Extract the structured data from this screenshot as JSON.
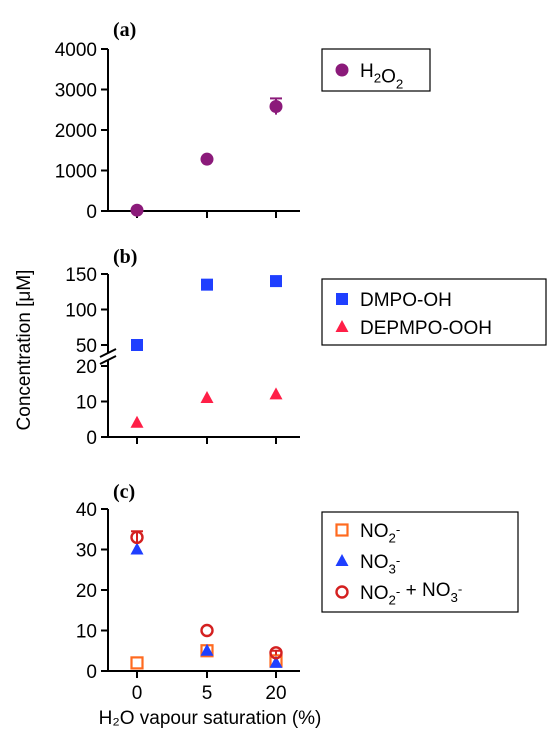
{
  "figure": {
    "shared_ylabel": "Concentration [μM]",
    "shared_xlabel": "H₂O vapour saturation (%)",
    "x_categories": [
      "0",
      "5",
      "20"
    ]
  },
  "chart_data": [
    {
      "type": "scatter",
      "panel_label": "(a)",
      "categories": [
        "0",
        "5",
        "20"
      ],
      "ylim": [
        0,
        4000
      ],
      "yticks": [
        "0",
        "1000",
        "2000",
        "3000",
        "4000"
      ],
      "ytick_values": [
        0,
        1000,
        2000,
        3000,
        4000
      ],
      "legend_position": "top-right",
      "series": [
        {
          "name": "H₂O₂",
          "marker": "circle-filled",
          "color": "#8b1a7a",
          "values": [
            20,
            1280,
            2580
          ],
          "errors": [
            10,
            30,
            200
          ]
        }
      ]
    },
    {
      "type": "scatter",
      "panel_label": "(b)",
      "categories": [
        "0",
        "5",
        "20"
      ],
      "broken_axis": true,
      "upper_segment": {
        "ylim": [
          50,
          150
        ],
        "yticks": [
          "50",
          "100",
          "150"
        ],
        "ytick_values": [
          50,
          100,
          150
        ]
      },
      "lower_segment": {
        "ylim": [
          0,
          20
        ],
        "yticks": [
          "0",
          "10",
          "20"
        ],
        "ytick_values": [
          0,
          10,
          20
        ]
      },
      "legend_position": "top-right",
      "series": [
        {
          "name": "DMPO-OH",
          "marker": "square-filled",
          "color": "#1f3fff",
          "values": [
            50,
            135,
            140
          ]
        },
        {
          "name": "DEPMPO-OOH",
          "marker": "triangle-filled",
          "color": "#ff1f47",
          "values": [
            4,
            11,
            12
          ]
        }
      ]
    },
    {
      "type": "scatter",
      "panel_label": "(c)",
      "categories": [
        "0",
        "5",
        "20"
      ],
      "ylim": [
        0,
        40
      ],
      "yticks": [
        "0",
        "10",
        "20",
        "30",
        "40"
      ],
      "ytick_values": [
        0,
        10,
        20,
        30,
        40
      ],
      "legend_position": "top-right",
      "series": [
        {
          "name": "NO₂⁻",
          "marker": "square-open",
          "color": "#ff6a1f",
          "values": [
            2,
            5,
            2.5
          ]
        },
        {
          "name": "NO₃⁻",
          "marker": "triangle-filled",
          "color": "#1f3fff",
          "values": [
            30,
            5,
            2
          ]
        },
        {
          "name": "NO₂⁻ + NO₃⁻",
          "marker": "circle-open",
          "color": "#d42020",
          "values": [
            33,
            10,
            4.5
          ],
          "errors": [
            1.5,
            0,
            0.5
          ]
        }
      ]
    }
  ]
}
